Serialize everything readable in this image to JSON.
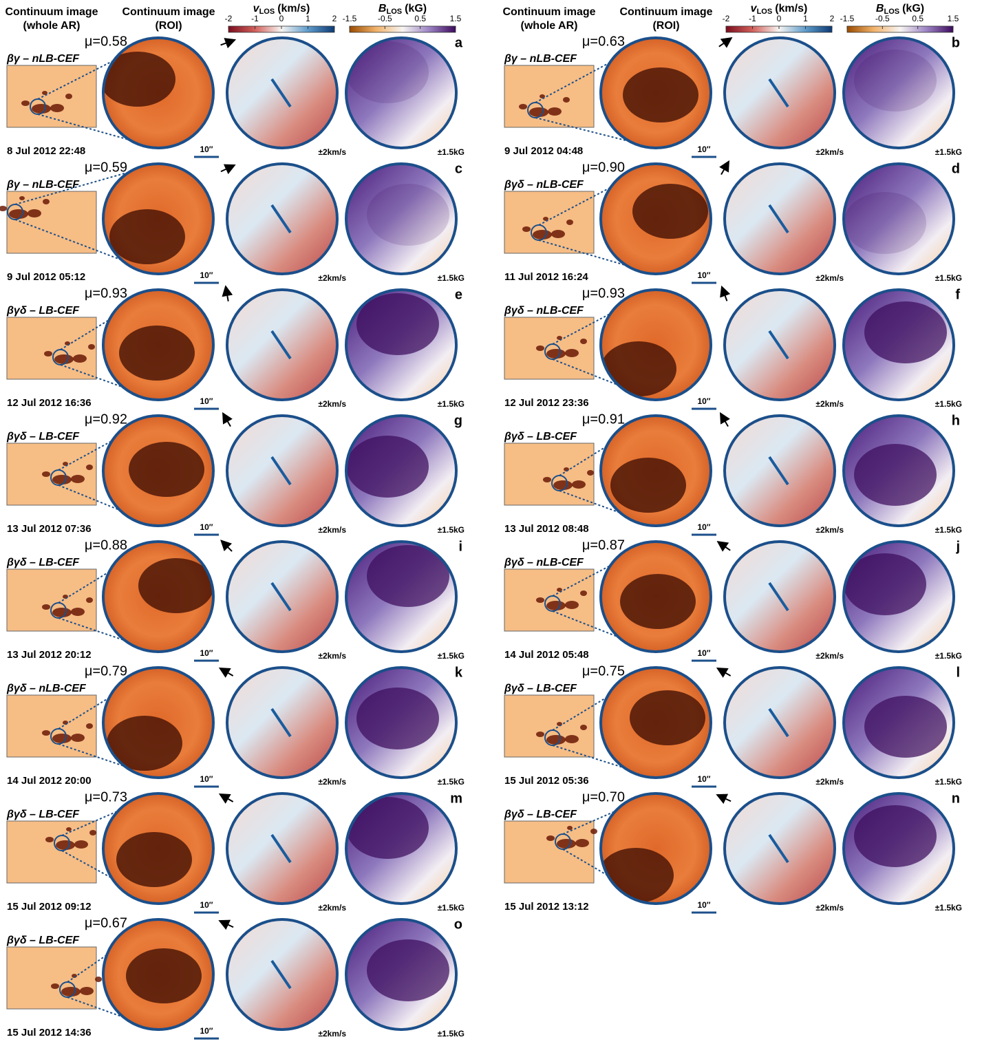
{
  "header": {
    "whole_ar": [
      "Continuum image",
      "(whole AR)"
    ],
    "roi": [
      "Continuum image",
      "(ROI)"
    ],
    "vlos": {
      "symbol": "v",
      "sub": "LOS",
      "unit": "(km/s)",
      "lim": [
        -2,
        2
      ],
      "ticks": [
        -2,
        -1,
        0,
        1,
        2
      ]
    },
    "blos": {
      "symbol": "B",
      "sub": "LOS",
      "unit": "(kG)",
      "lim": [
        -1.5,
        1.5
      ],
      "ticks": [
        -1.5,
        -0.5,
        0.5,
        1.5
      ]
    }
  },
  "scale_bar": "10″",
  "vel_range": "±2km/s",
  "b_range": "±1.5kG",
  "panels": [
    {
      "letter": "a",
      "mu": "μ=0.58",
      "category": "βγ – nLB-CEF",
      "date": "8 Jul 2012 22:48"
    },
    {
      "letter": "b",
      "mu": "μ=0.63",
      "category": "βγ – nLB-CEF",
      "date": "9 Jul 2012 04:48"
    },
    {
      "letter": "c",
      "mu": "μ=0.59",
      "category": "βγ – nLB-CEF",
      "date": "9 Jul 2012 05:12"
    },
    {
      "letter": "d",
      "mu": "μ=0.90",
      "category": "βγδ – nLB-CEF",
      "date": "11 Jul 2012 16:24"
    },
    {
      "letter": "e",
      "mu": "μ=0.93",
      "category": "βγδ – LB-CEF",
      "date": "12 Jul 2012 16:36"
    },
    {
      "letter": "f",
      "mu": "μ=0.93",
      "category": "βγδ – nLB-CEF",
      "date": "12 Jul 2012 23:36"
    },
    {
      "letter": "g",
      "mu": "μ=0.92",
      "category": "βγδ – LB-CEF",
      "date": "13 Jul 2012 07:36"
    },
    {
      "letter": "h",
      "mu": "μ=0.91",
      "category": "βγδ – LB-CEF",
      "date": "13 Jul 2012 08:48"
    },
    {
      "letter": "i",
      "mu": "μ=0.88",
      "category": "βγδ – LB-CEF",
      "date": "13 Jul 2012 20:12"
    },
    {
      "letter": "j",
      "mu": "μ=0.87",
      "category": "βγδ – nLB-CEF",
      "date": "14 Jul 2012 05:48"
    },
    {
      "letter": "k",
      "mu": "μ=0.79",
      "category": "βγδ – nLB-CEF",
      "date": "14 Jul 2012 20:00"
    },
    {
      "letter": "l",
      "mu": "μ=0.75",
      "category": "βγδ – LB-CEF",
      "date": "15 Jul 2012 05:36"
    },
    {
      "letter": "m",
      "mu": "μ=0.73",
      "category": "βγδ – LB-CEF",
      "date": "15 Jul 2012 09:12"
    },
    {
      "letter": "n",
      "mu": "μ=0.70",
      "category": "βγδ – LB-CEF",
      "date": "15 Jul 2012 13:12"
    },
    {
      "letter": "o",
      "mu": "μ=0.67",
      "category": "βγδ – LB-CEF",
      "date": "15 Jul 2012 14:36"
    }
  ]
}
